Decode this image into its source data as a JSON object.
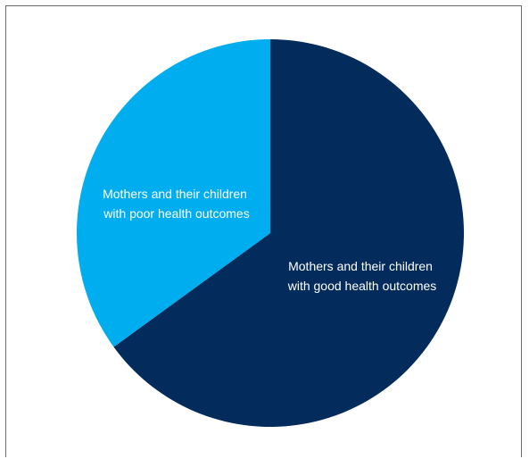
{
  "chart_data": {
    "type": "pie",
    "title": "",
    "slices": [
      {
        "label_lines": [
          "Mothers and their children",
          "with good health outcomes"
        ],
        "value": 65,
        "color": "#032b5c"
      },
      {
        "label_lines": [
          "Mothers and their children",
          "with poor health outcomes"
        ],
        "value": 35,
        "color": "#00adef"
      }
    ],
    "start": "12 o'clock",
    "direction": "clockwise"
  }
}
